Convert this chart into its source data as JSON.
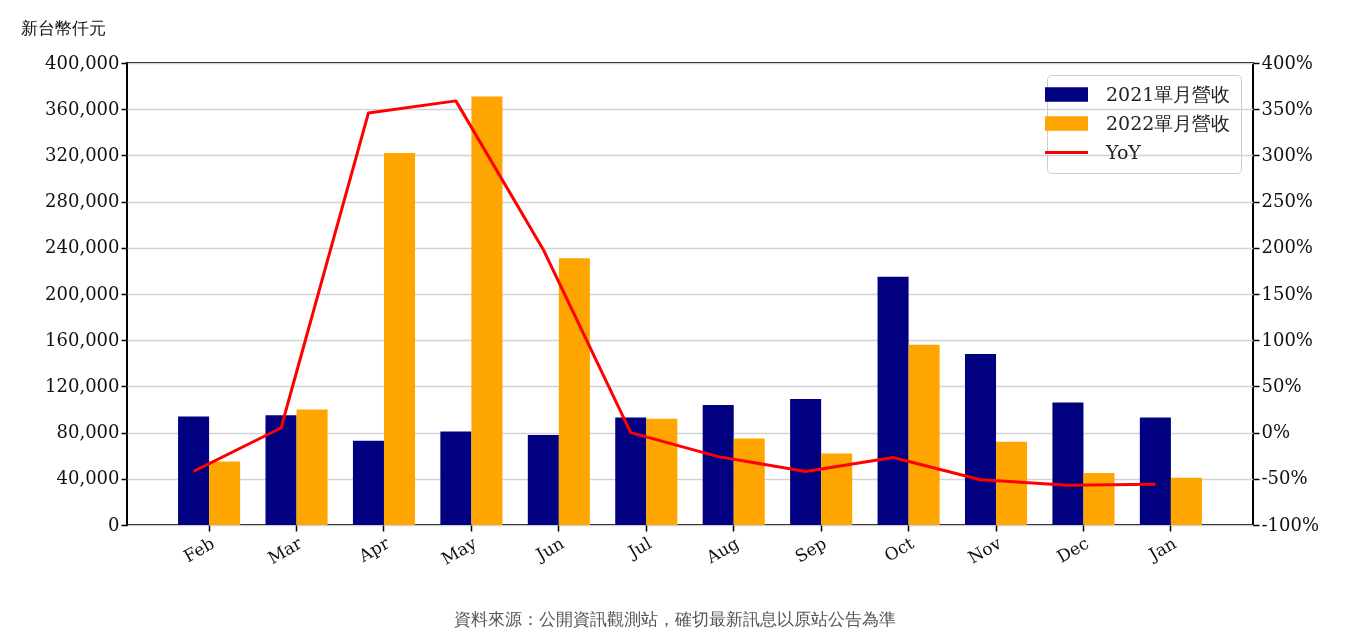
{
  "chart_data": {
    "type": "bar",
    "ylabel": "新台幣仟元",
    "categories": [
      "Feb",
      "Mar",
      "Apr",
      "May",
      "Jun",
      "Jul",
      "Aug",
      "Sep",
      "Oct",
      "Nov",
      "Dec",
      "Jan"
    ],
    "series": [
      {
        "name": "2021單月營收",
        "color": "#000080",
        "values": [
          94000,
          95000,
          73000,
          81000,
          78000,
          93000,
          104000,
          109000,
          215000,
          148000,
          106000,
          93000
        ]
      },
      {
        "name": "2022單月營收",
        "color": "#ffa500",
        "values": [
          55000,
          100000,
          322000,
          371000,
          231000,
          92000,
          75000,
          62000,
          156000,
          72000,
          45000,
          41000
        ]
      },
      {
        "name": "YoY",
        "type": "line",
        "axis": "y2",
        "color": "#ff0000",
        "values": [
          -42,
          5,
          346,
          359,
          198,
          0,
          -26,
          -42,
          -27,
          -51,
          -57,
          -56
        ]
      }
    ],
    "ylim": [
      0,
      400000
    ],
    "yticks": [
      0,
      {
        "value": 40000,
        "label": "40,000"
      },
      {
        "value": 80000,
        "label": "80,000"
      },
      {
        "value": 120000,
        "label": "120,000"
      },
      {
        "value": 160000,
        "label": "160,000"
      },
      {
        "value": 200000,
        "label": "200,000"
      },
      {
        "value": 240000,
        "label": "240,000"
      },
      {
        "value": 280000,
        "label": "280,000"
      },
      {
        "value": 320000,
        "label": "320,000"
      },
      {
        "value": 360000,
        "label": "360,000"
      },
      {
        "value": 400000,
        "label": "400,000"
      }
    ],
    "y2lim": [
      -100,
      400
    ],
    "y2ticks": [
      {
        "value": -100,
        "label": "-100%"
      },
      {
        "value": -50,
        "label": "-50%"
      },
      {
        "value": 0,
        "label": "0%"
      },
      {
        "value": 50,
        "label": "50%"
      },
      {
        "value": 100,
        "label": "100%"
      },
      {
        "value": 150,
        "label": "150%"
      },
      {
        "value": 200,
        "label": "200%"
      },
      {
        "value": 250,
        "label": "250%"
      },
      {
        "value": 300,
        "label": "300%"
      },
      {
        "value": 350,
        "label": "350%"
      },
      {
        "value": 400,
        "label": "400%"
      }
    ],
    "grid": "y",
    "legend": "top right",
    "annotations": [
      "資料來源：公開資訊觀測站，確切最新訊息以原站公告為準"
    ]
  }
}
